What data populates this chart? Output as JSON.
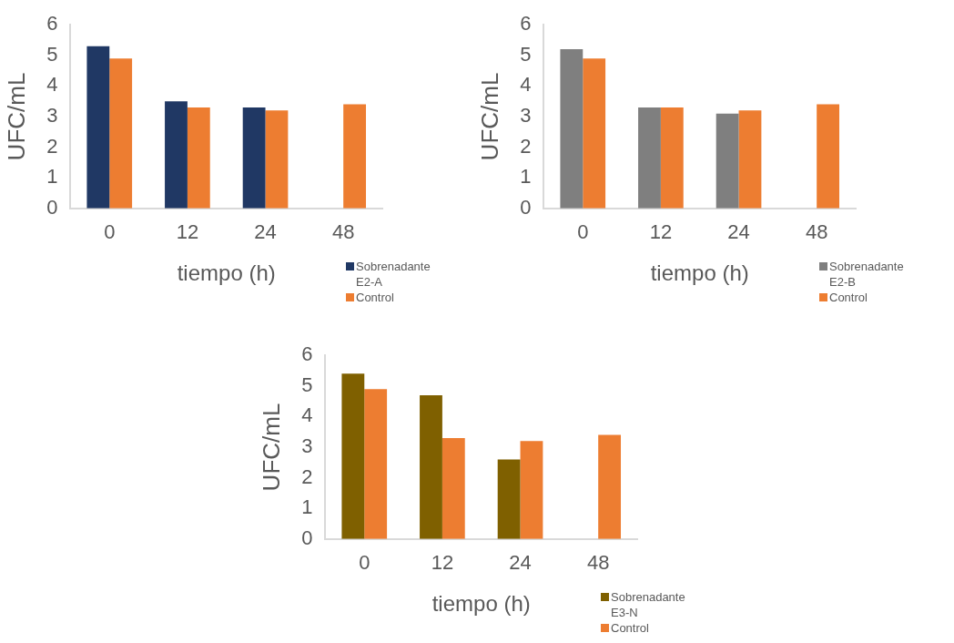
{
  "chart_data": [
    {
      "type": "bar",
      "xlabel": "tiempo (h)",
      "ylabel": "UFC/mL",
      "categories": [
        "0",
        "12",
        "24",
        "48"
      ],
      "ylim": [
        0,
        6
      ],
      "yticks": [
        0,
        1,
        2,
        3,
        4,
        5,
        6
      ],
      "grid": false,
      "legend": "bottom right",
      "series": [
        {
          "name": "Sobrenadante E2-A",
          "color": "#203864",
          "values": [
            5.3,
            3.5,
            3.3,
            null
          ]
        },
        {
          "name": "Control",
          "color": "#ed7d31",
          "values": [
            4.9,
            3.3,
            3.2,
            3.4
          ]
        }
      ]
    },
    {
      "type": "bar",
      "xlabel": "tiempo (h)",
      "ylabel": "UFC/mL",
      "categories": [
        "0",
        "12",
        "24",
        "48"
      ],
      "ylim": [
        0,
        6
      ],
      "yticks": [
        0,
        1,
        2,
        3,
        4,
        5,
        6
      ],
      "grid": false,
      "legend": "bottom right",
      "series": [
        {
          "name": "Sobrenadante E2-B",
          "color": "#7f7f7f",
          "values": [
            5.2,
            3.3,
            3.1,
            null
          ]
        },
        {
          "name": "Control",
          "color": "#ed7d31",
          "values": [
            4.9,
            3.3,
            3.2,
            3.4
          ]
        }
      ]
    },
    {
      "type": "bar",
      "xlabel": "tiempo (h)",
      "ylabel": "UFC/mL",
      "categories": [
        "0",
        "12",
        "24",
        "48"
      ],
      "ylim": [
        0,
        6
      ],
      "yticks": [
        0,
        1,
        2,
        3,
        4,
        5,
        6
      ],
      "grid": false,
      "legend": "bottom right",
      "series": [
        {
          "name": "Sobrenadante E3-N",
          "color": "#7f6000",
          "values": [
            5.4,
            4.7,
            2.6,
            null
          ]
        },
        {
          "name": "Control",
          "color": "#ed7d31",
          "values": [
            4.9,
            3.3,
            3.2,
            3.4
          ]
        }
      ]
    }
  ]
}
